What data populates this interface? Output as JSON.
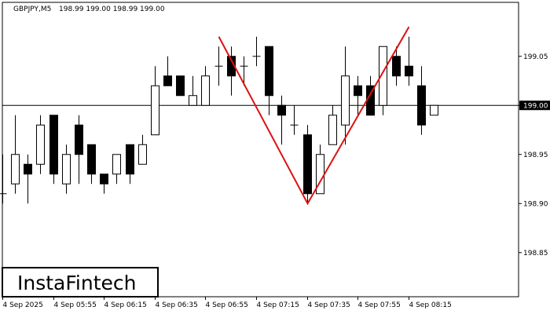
{
  "header": {
    "symbol": "GBPJPY,M5",
    "ohlc": "198.99 199.00 198.99 199.00"
  },
  "logo": {
    "text": "InstaFintech"
  },
  "chart_data": {
    "type": "candlestick",
    "symbol": "GBPJPY",
    "timeframe": "M5",
    "ylim": [
      198.805,
      199.105
    ],
    "y_ticks": [
      "199.05",
      "199.00",
      "198.95",
      "198.90",
      "198.85"
    ],
    "y_tick_values": [
      199.05,
      199.0,
      198.95,
      198.9,
      198.85
    ],
    "x_ticks": [
      "4 Sep 2025",
      "4 Sep 05:55",
      "4 Sep 06:15",
      "4 Sep 06:35",
      "4 Sep 06:55",
      "4 Sep 07:15",
      "4 Sep 07:35",
      "4 Sep 07:55",
      "4 Sep 08:15"
    ],
    "x_tick_index": [
      0,
      4,
      8,
      12,
      16,
      20,
      24,
      28,
      32
    ],
    "current_price": 199.0,
    "current_price_label": "199.00",
    "candles": [
      {
        "o": 198.91,
        "h": 198.95,
        "l": 198.9,
        "c": 198.91
      },
      {
        "o": 198.92,
        "h": 198.99,
        "l": 198.91,
        "c": 198.95
      },
      {
        "o": 198.94,
        "h": 198.95,
        "l": 198.9,
        "c": 198.93
      },
      {
        "o": 198.94,
        "h": 198.99,
        "l": 198.93,
        "c": 198.98
      },
      {
        "o": 198.99,
        "h": 198.99,
        "l": 198.92,
        "c": 198.93
      },
      {
        "o": 198.92,
        "h": 198.96,
        "l": 198.91,
        "c": 198.95
      },
      {
        "o": 198.98,
        "h": 198.99,
        "l": 198.92,
        "c": 198.95
      },
      {
        "o": 198.96,
        "h": 198.96,
        "l": 198.92,
        "c": 198.93
      },
      {
        "o": 198.93,
        "h": 198.93,
        "l": 198.91,
        "c": 198.92
      },
      {
        "o": 198.93,
        "h": 198.95,
        "l": 198.92,
        "c": 198.95
      },
      {
        "o": 198.96,
        "h": 198.96,
        "l": 198.92,
        "c": 198.93
      },
      {
        "o": 198.94,
        "h": 198.97,
        "l": 198.94,
        "c": 198.96
      },
      {
        "o": 198.97,
        "h": 199.04,
        "l": 198.97,
        "c": 199.02
      },
      {
        "o": 199.03,
        "h": 199.05,
        "l": 199.02,
        "c": 199.02
      },
      {
        "o": 199.03,
        "h": 199.03,
        "l": 199.01,
        "c": 199.01
      },
      {
        "o": 199.0,
        "h": 199.03,
        "l": 199.0,
        "c": 199.01
      },
      {
        "o": 199.0,
        "h": 199.04,
        "l": 199.0,
        "c": 199.03
      },
      {
        "o": 199.04,
        "h": 199.06,
        "l": 199.02,
        "c": 199.04
      },
      {
        "o": 199.05,
        "h": 199.06,
        "l": 199.01,
        "c": 199.03
      },
      {
        "o": 199.04,
        "h": 199.05,
        "l": 199.02,
        "c": 199.04
      },
      {
        "o": 199.05,
        "h": 199.07,
        "l": 199.04,
        "c": 199.05
      },
      {
        "o": 199.06,
        "h": 199.06,
        "l": 198.99,
        "c": 199.01
      },
      {
        "o": 199.0,
        "h": 199.01,
        "l": 198.96,
        "c": 198.99
      },
      {
        "o": 198.98,
        "h": 199.0,
        "l": 198.97,
        "c": 198.98
      },
      {
        "o": 198.97,
        "h": 198.98,
        "l": 198.9,
        "c": 198.91
      },
      {
        "o": 198.91,
        "h": 198.96,
        "l": 198.91,
        "c": 198.95
      },
      {
        "o": 198.96,
        "h": 199.0,
        "l": 198.96,
        "c": 198.99
      },
      {
        "o": 198.98,
        "h": 199.06,
        "l": 198.96,
        "c": 199.03
      },
      {
        "o": 199.02,
        "h": 199.03,
        "l": 198.99,
        "c": 199.01
      },
      {
        "o": 199.02,
        "h": 199.03,
        "l": 198.99,
        "c": 198.99
      },
      {
        "o": 199.0,
        "h": 199.06,
        "l": 198.99,
        "c": 199.06
      },
      {
        "o": 199.05,
        "h": 199.06,
        "l": 199.02,
        "c": 199.03
      },
      {
        "o": 199.04,
        "h": 199.07,
        "l": 199.02,
        "c": 199.03
      },
      {
        "o": 199.02,
        "h": 199.04,
        "l": 198.97,
        "c": 198.98
      },
      {
        "o": 198.99,
        "h": 199.0,
        "l": 198.99,
        "c": 199.0
      }
    ],
    "pattern": {
      "color": "#dd1111",
      "points": [
        {
          "index": 17,
          "price": 199.07
        },
        {
          "index": 24,
          "price": 198.9
        },
        {
          "index": 32,
          "price": 199.08
        }
      ]
    }
  }
}
